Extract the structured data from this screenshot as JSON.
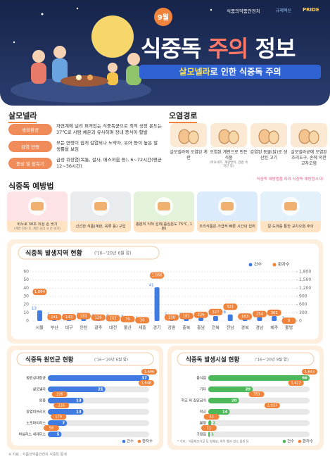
{
  "header": {
    "month": "9월",
    "org": "식품의약품안전처",
    "badges": [
      "규제혁신",
      "PRIDE"
    ],
    "title": {
      "part1": "식중독",
      "part2": "주의",
      "part3": "정보"
    },
    "subtitle": {
      "highlight": "살모넬라",
      "rest": "로 인한 식중독 주의"
    }
  },
  "salmonella": {
    "heading": "살모넬라",
    "rows": [
      {
        "label": "생육환경",
        "text": "자연계에 널리 퍼져있는 식중독균으로 최적 성장 온도는 37℃로 사람 체온과 유사하며 장내 증식이 활발"
      },
      {
        "label": "감염 연령",
        "text": "모든 연령이 쉽게 감염되나 노약자, 유아 등이 높은 발생률을 보임"
      },
      {
        "label": "증상 및 잠복기",
        "text": "급성 위장염(복통, 설사, 메스꺼움 등), 6~72시간(평균 12~36시간)"
      }
    ]
  },
  "routes": {
    "heading": "오염경로",
    "items": [
      {
        "text": "살모넬라에 오염된 계란"
      },
      {
        "text": "오염된 계란으로 만든 식품",
        "note": "(마요네즈, 계란말이, 김밥 속 지단 등)"
      },
      {
        "text": "감염된 동물(닭)로 생산된 고기"
      },
      {
        "text": "살모넬라균에 오염된 조리도구, 손에 의한 교차오염"
      }
    ],
    "note": "식중독 예방법을 따라 식중독 예방합시다!"
  },
  "prevention": {
    "heading": "식중독 예방법",
    "items": [
      {
        "text": "비누로 30초 이상 손 씻기",
        "note": "(계란 만진 후, 계란 요리 시 손 씻기)"
      },
      {
        "text": "신선한 식품(계란, 육류 등) 구입"
      },
      {
        "text": "충분히 익혀 섭취(중심온도 75℃, 1분)"
      },
      {
        "text": "조리식품은 가급적 빠른 시간내 섭취"
      },
      {
        "text": "칼·도마를 통한 교차오염 주의"
      }
    ]
  },
  "chart_data": [
    {
      "type": "bar",
      "title": "식중독 발생지역 현황",
      "subtitle": "('16~'20년 6월 합)",
      "categories": [
        "서울",
        "부산",
        "대구",
        "인천",
        "광주",
        "대전",
        "울산",
        "세종",
        "경기",
        "강원",
        "충북",
        "충남",
        "전북",
        "전남",
        "경북",
        "경남",
        "제주",
        "불명"
      ],
      "series": [
        {
          "name": "건수",
          "color": "#3f7be0",
          "values": [
            13,
            5,
            4,
            5,
            4,
            4,
            3,
            1,
            41,
            5,
            5,
            5,
            6,
            8,
            4,
            5,
            6,
            1
          ]
        },
        {
          "name": "환자수",
          "color": "#f0843c",
          "axis": "y2",
          "values": [
            1064,
            141,
            143,
            181,
            126,
            102,
            70,
            30,
            1666,
            130,
            181,
            226,
            327,
            521,
            163,
            254,
            301,
            9
          ],
          "value_labels": [
            "1,064",
            "141",
            "143",
            "181",
            "126",
            "102",
            "70",
            "30",
            "1,666",
            "130",
            "181",
            "226",
            "327",
            "521",
            "163",
            "254",
            "301",
            "9"
          ]
        }
      ],
      "ylim": [
        0,
        60
      ],
      "yticks": [
        0,
        10,
        20,
        30,
        40,
        50,
        60
      ],
      "y2lim": [
        0,
        1800
      ],
      "y2ticks": [
        0,
        300,
        600,
        900,
        {
          "value": 1200,
          "label": "1,200"
        },
        {
          "value": 1500,
          "label": "1,500"
        },
        {
          "value": 1800,
          "label": "1,800"
        }
      ],
      "grid": true,
      "legend": "top-right"
    },
    {
      "type": "hbar",
      "title": "식중독 원인균 현황",
      "subtitle": "('16~'20년 6월 합)",
      "categories": [
        "병원성대장균",
        "살모넬라",
        "원충",
        "장염비브리오",
        "노로바이러스",
        "바실러스 세레우스"
      ],
      "series": [
        {
          "name": "건수",
          "color": "#3f7be0",
          "values": [
            37,
            21,
            13,
            13,
            7,
            5
          ]
        },
        {
          "name": "환자수",
          "color": "#f0843c",
          "values": [
            1696,
            1648,
            196,
            226,
            179,
            58
          ],
          "value_labels": [
            "1,696",
            "1,648",
            "196",
            "226",
            "179",
            "58"
          ]
        }
      ],
      "legend": "bottom-right"
    },
    {
      "type": "hbar",
      "title": "식중독 발생시설 현황",
      "subtitle": "('16~'20년 9월 합)",
      "categories": [
        "음식점",
        "기타",
        "학교 외 집단급식",
        "학교",
        "불명",
        "가정집"
      ],
      "series": [
        {
          "name": "건수",
          "color": "#4cb85a",
          "values": [
            66,
            29,
            20,
            14,
            2,
            1
          ]
        },
        {
          "name": "환자수",
          "color": "#f0843c",
          "values": [
            1643,
            1422,
            783,
            1037,
            52,
            11
          ],
          "value_labels": [
            "1,643",
            "1,422",
            "783",
            "1,037",
            "52",
            "11"
          ]
        }
      ],
      "note": "* 기타 : 식품제조가공 등 원재료, 외부 행사 장소 섭취 등",
      "legend": "bottom-right"
    }
  ],
  "footer": "※ 자료 : 식품의약품안전처 식중독 통계"
}
